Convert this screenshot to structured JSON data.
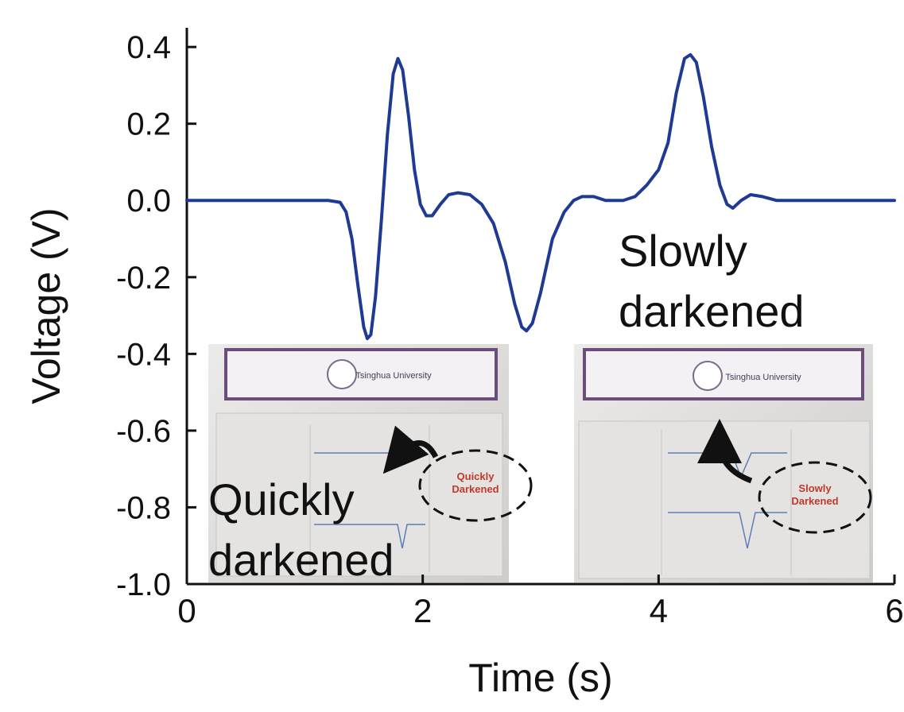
{
  "chart_data": {
    "type": "line",
    "x_label": "Time (s)",
    "y_label": "Voltage (V)",
    "xlim": [
      0,
      6
    ],
    "xticks": [
      0,
      2,
      4,
      6
    ],
    "ylim": [
      -1.0,
      0.45
    ],
    "yticks": [
      0.4,
      0.2,
      {
        "value": 0,
        "label": "0.0"
      },
      -0.2,
      -0.4,
      -0.6,
      -0.8,
      {
        "value": -1,
        "label": "-1.0"
      }
    ],
    "grid": false,
    "x": [
      0,
      0.5,
      1.0,
      1.2,
      1.3,
      1.35,
      1.4,
      1.45,
      1.5,
      1.53,
      1.56,
      1.6,
      1.65,
      1.7,
      1.75,
      1.79,
      1.83,
      1.88,
      1.93,
      1.98,
      2.03,
      2.08,
      2.15,
      2.22,
      2.3,
      2.4,
      2.5,
      2.6,
      2.7,
      2.78,
      2.84,
      2.88,
      2.93,
      3.0,
      3.1,
      3.2,
      3.28,
      3.35,
      3.45,
      3.55,
      3.7,
      3.8,
      3.9,
      4.0,
      4.08,
      4.15,
      4.22,
      4.27,
      4.32,
      4.38,
      4.45,
      4.52,
      4.58,
      4.63,
      4.7,
      4.78,
      4.88,
      5.0,
      5.5,
      6.0
    ],
    "series": [
      {
        "color": "#1f3a93",
        "values": [
          0,
          0,
          0,
          0,
          -0.005,
          -0.03,
          -0.1,
          -0.22,
          -0.33,
          -0.36,
          -0.35,
          -0.25,
          -0.05,
          0.17,
          0.33,
          0.37,
          0.34,
          0.22,
          0.08,
          -0.01,
          -0.04,
          -0.04,
          -0.01,
          0.015,
          0.02,
          0.015,
          -0.01,
          -0.06,
          -0.16,
          -0.27,
          -0.33,
          -0.34,
          -0.32,
          -0.24,
          -0.1,
          -0.03,
          0.0,
          0.01,
          0.01,
          0.0,
          0.0,
          0.01,
          0.04,
          0.08,
          0.15,
          0.28,
          0.37,
          0.38,
          0.36,
          0.27,
          0.14,
          0.04,
          -0.01,
          -0.02,
          0.0,
          0.015,
          0.01,
          0.0,
          0.0,
          0.0
        ]
      }
    ],
    "annotations": [
      [
        "Slowly",
        "darkened"
      ],
      [
        "Quickly",
        "darkened"
      ]
    ],
    "insets": [
      {
        "header": "Tsinghua University",
        "label": [
          "Quickly",
          "Darkened"
        ]
      },
      {
        "header": "Tsinghua University",
        "label": [
          "Slowly",
          "Darkened"
        ]
      }
    ]
  }
}
